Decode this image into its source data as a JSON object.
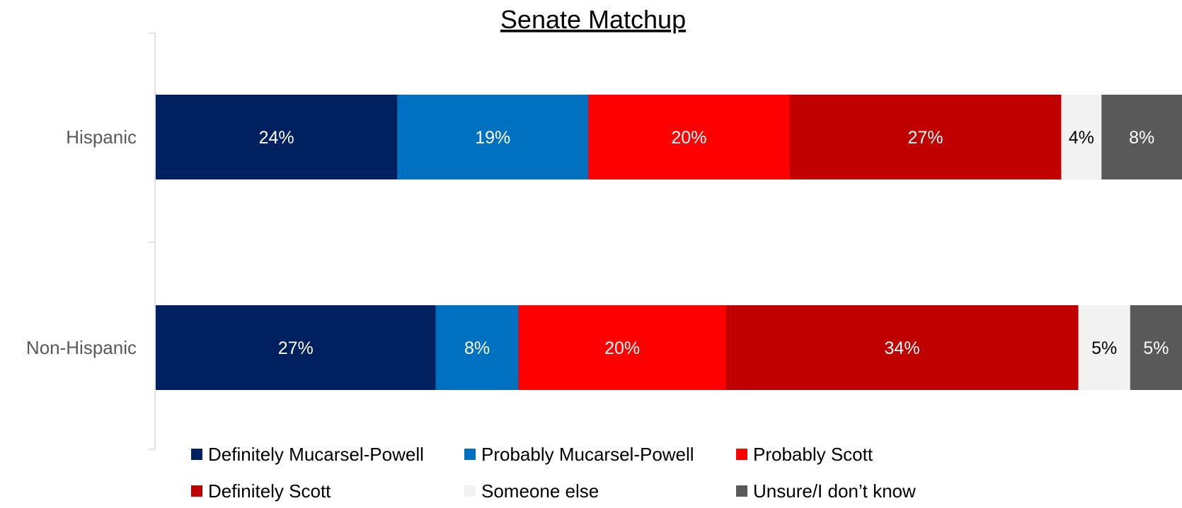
{
  "chart_data": {
    "type": "bar",
    "orientation": "horizontal",
    "stacked": true,
    "title": "Senate Matchup",
    "categories": [
      "Hispanic",
      "Non-Hispanic"
    ],
    "series": [
      {
        "name": "Definitely Mucarsel-Powell",
        "color": "#002060",
        "values": [
          24,
          27
        ],
        "labels": [
          "24%",
          "27%"
        ]
      },
      {
        "name": "Probably Mucarsel-Powell",
        "color": "#0070C0",
        "values": [
          19,
          8
        ],
        "labels": [
          "19%",
          "8%"
        ]
      },
      {
        "name": "Probably Scott",
        "color": "#FF0000",
        "values": [
          20,
          20
        ],
        "labels": [
          "20%",
          "20%"
        ]
      },
      {
        "name": "Definitely Scott",
        "color": "#C00000",
        "values": [
          27,
          34
        ],
        "labels": [
          "27%",
          "34%"
        ]
      },
      {
        "name": "Someone else",
        "color": "#F2F2F2",
        "values": [
          4,
          5
        ],
        "labels": [
          "4%",
          "5%"
        ]
      },
      {
        "name": "Unsure/I don’t know",
        "color": "#595959",
        "values": [
          8,
          5
        ],
        "labels": [
          "8%",
          "5%"
        ]
      }
    ],
    "legend": {
      "position": "bottom"
    },
    "grid": false
  }
}
